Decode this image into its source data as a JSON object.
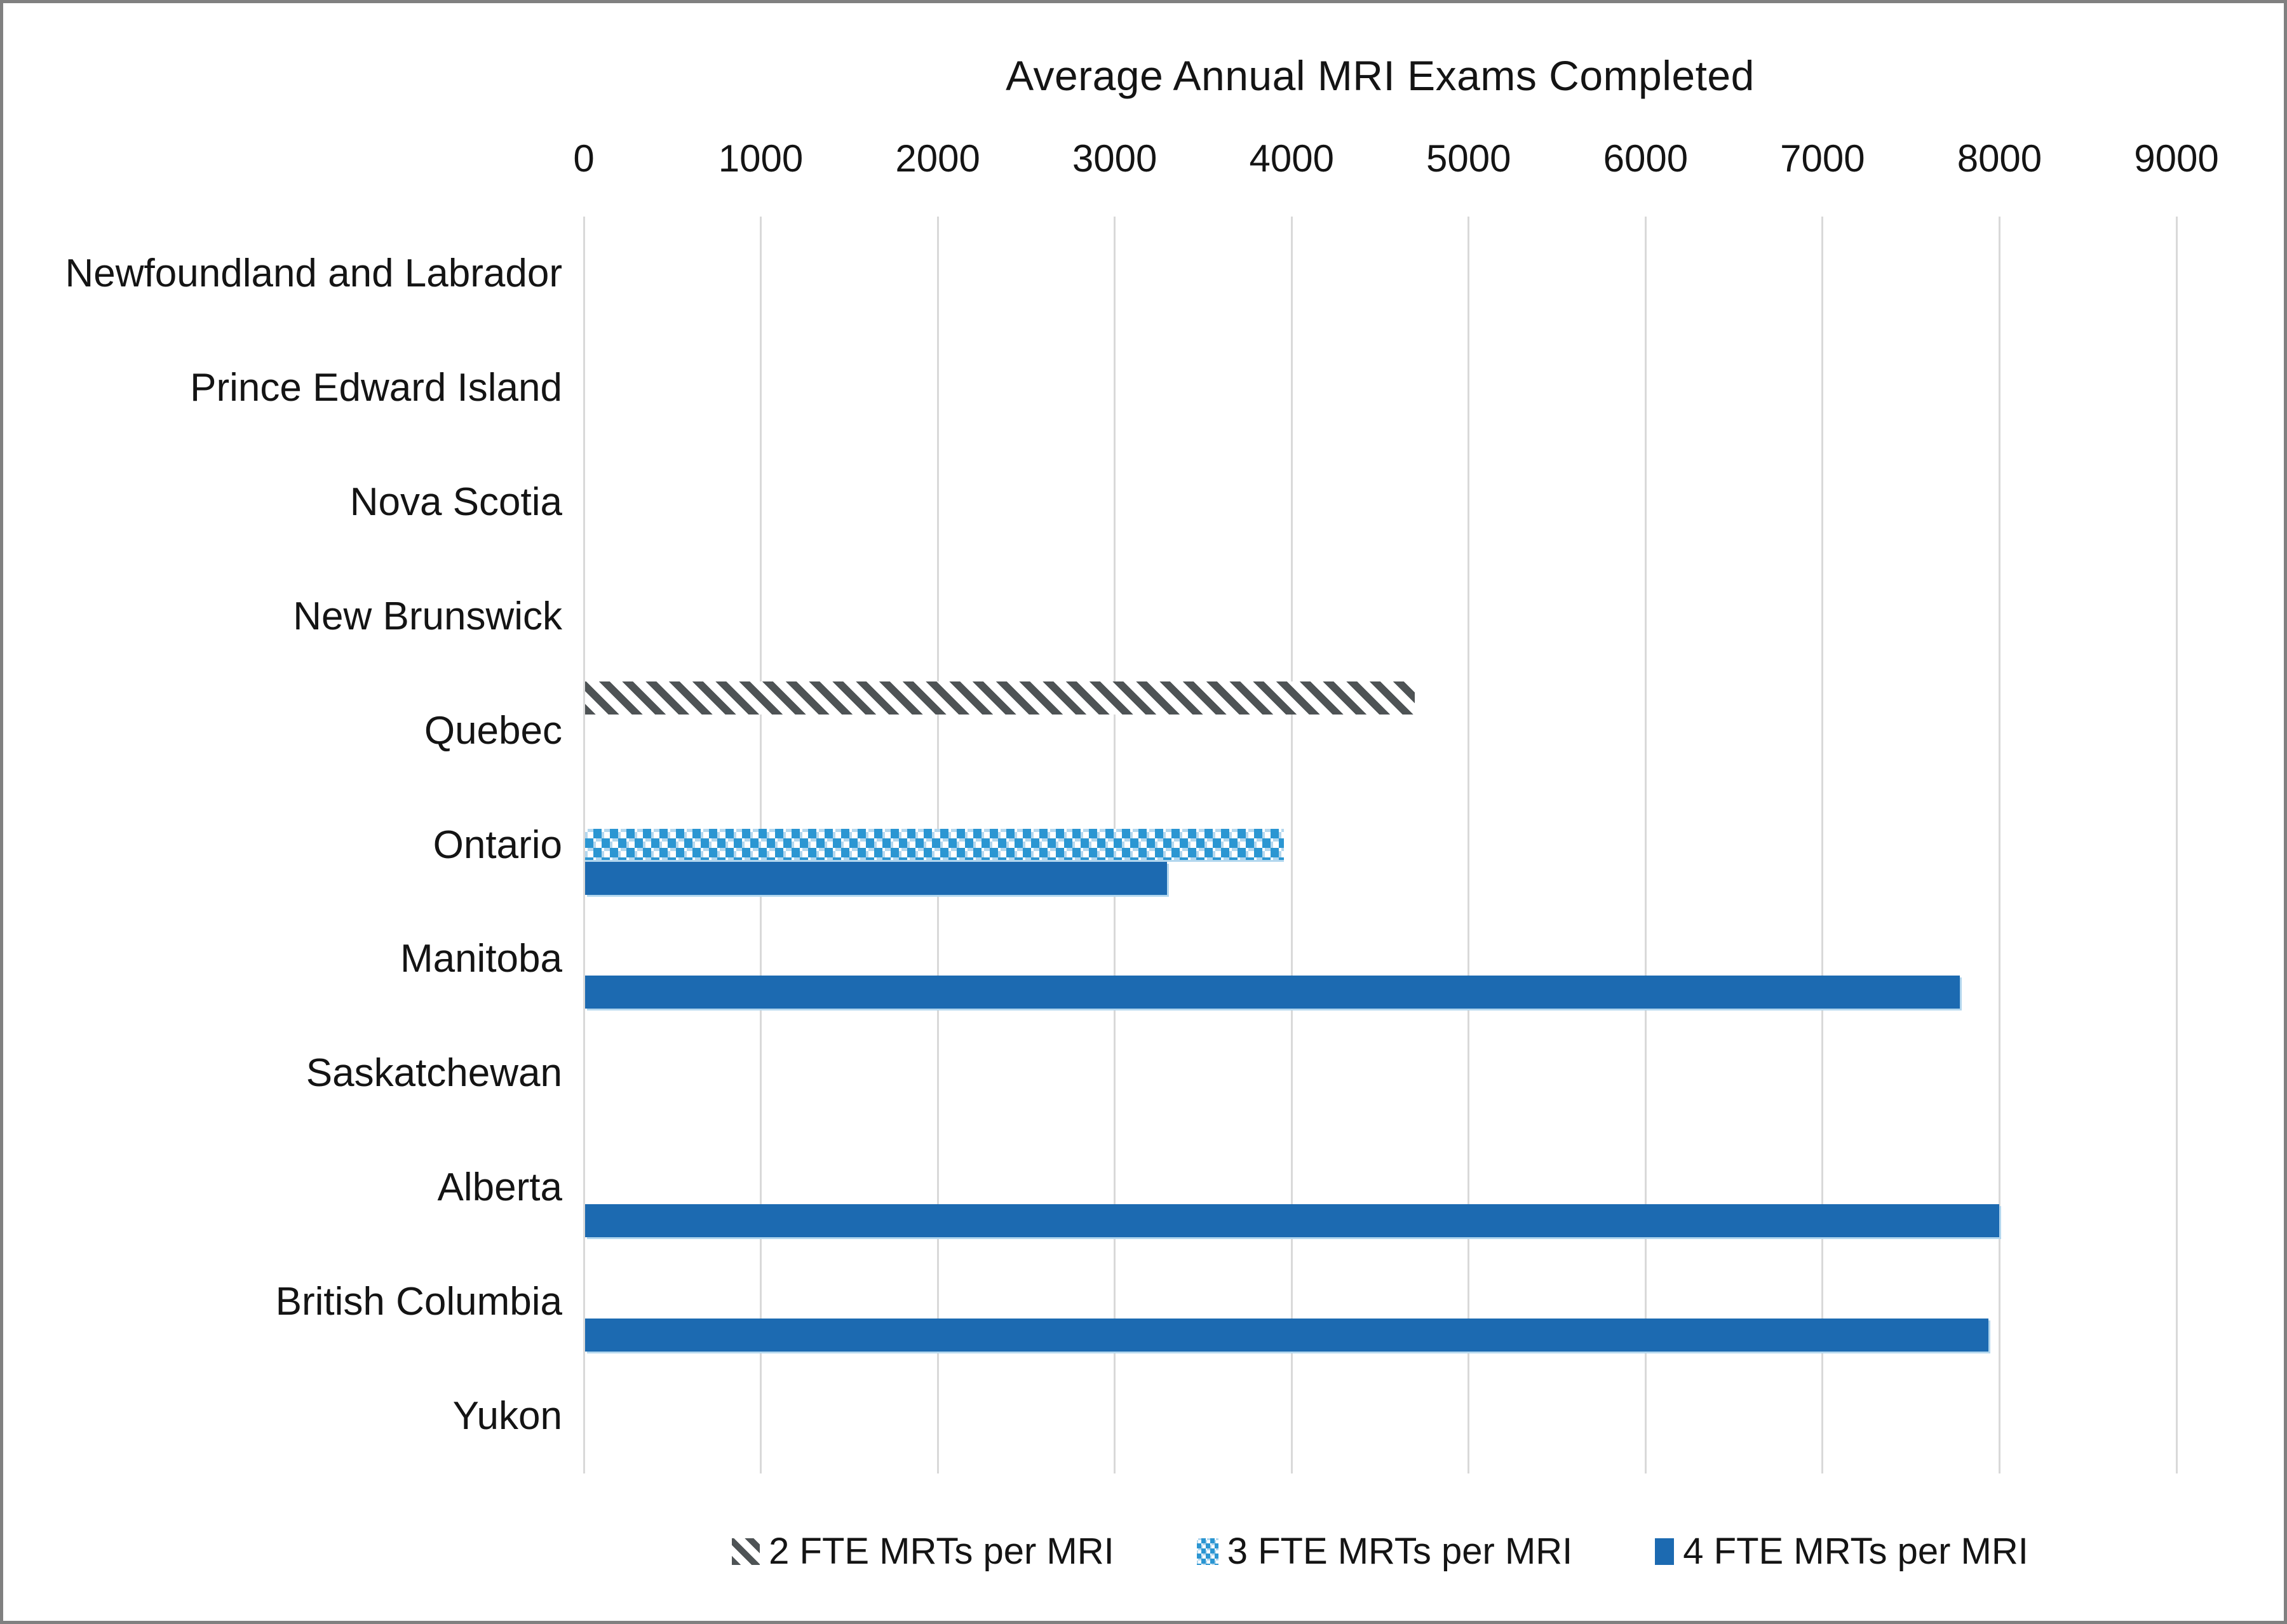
{
  "chart_data": {
    "type": "bar",
    "orientation": "horizontal",
    "title": "Average Annual MRI Exams Completed",
    "categories": [
      "Newfoundland and Labrador",
      "Prince Edward Island",
      "Nova Scotia",
      "New Brunswick",
      "Quebec",
      "Ontario",
      "Manitoba",
      "Saskatchewan",
      "Alberta",
      "British Columbia",
      "Yukon"
    ],
    "series": [
      {
        "name": "2 FTE MRTs per MRI",
        "pattern": "diagonal-hatch",
        "color": "#4E5355",
        "values": [
          null,
          null,
          null,
          null,
          4690,
          null,
          null,
          null,
          null,
          null,
          null
        ]
      },
      {
        "name": "3 FTE MRTs per MRI",
        "pattern": "dots",
        "color": "#2B96D2",
        "values": [
          null,
          null,
          null,
          null,
          null,
          3950,
          null,
          null,
          null,
          null,
          null
        ]
      },
      {
        "name": "4 FTE MRTs per MRI",
        "pattern": "solid",
        "color": "#1C6AB1",
        "values": [
          null,
          null,
          null,
          null,
          null,
          3290,
          7770,
          null,
          7990,
          7930,
          null
        ]
      }
    ],
    "x_ticks": [
      0,
      1000,
      2000,
      3000,
      4000,
      5000,
      6000,
      7000,
      8000,
      9000
    ],
    "xlim": [
      0,
      9000
    ],
    "xlabel": "",
    "ylabel": "",
    "grid": true,
    "axis_position": "top",
    "legend_position": "bottom"
  },
  "colors": {
    "solid_blue": "#1C6AB1",
    "dot_blue": "#2B96D2",
    "dot_shadow": "#B3D7EE",
    "hatch_gray": "#4E5355",
    "gridline": "#D9D9D9",
    "frame_border": "#808080",
    "text": "#141414",
    "background": "#FFFFFF"
  }
}
